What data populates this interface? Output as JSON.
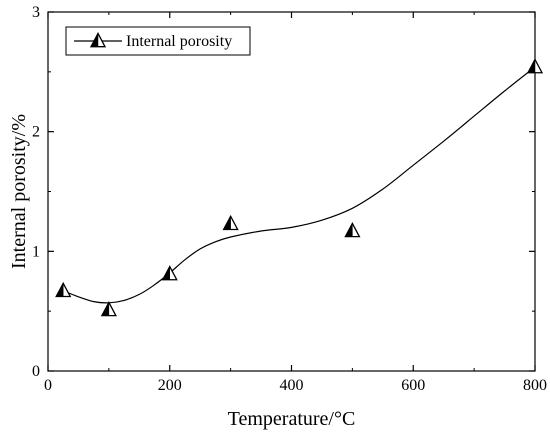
{
  "chart_data": {
    "type": "scatter",
    "xlabel": "Temperature/°C",
    "ylabel": "Internal porosity/%",
    "xlim": [
      0,
      800
    ],
    "ylim": [
      0,
      3
    ],
    "x_ticks": [
      0,
      200,
      400,
      600,
      800
    ],
    "y_ticks": [
      0,
      1,
      2,
      3
    ],
    "x_tick_labels": [
      "0",
      "200",
      "400",
      "600",
      "800"
    ],
    "y_tick_labels": [
      "0",
      "1",
      "2",
      "3"
    ],
    "grid": false,
    "legend_position": "top-left",
    "series": [
      {
        "name": "Internal porosity",
        "marker": "half-filled-triangle",
        "color": "#000000",
        "x": [
          25,
          100,
          200,
          300,
          500,
          800
        ],
        "y": [
          0.67,
          0.51,
          0.81,
          1.23,
          1.17,
          2.54
        ]
      }
    ],
    "fit_curve": {
      "x": [
        25,
        50,
        75,
        100,
        125,
        150,
        175,
        200,
        225,
        250,
        275,
        300,
        350,
        400,
        450,
        500,
        550,
        600,
        650,
        700,
        750,
        800
      ],
      "y": [
        0.67,
        0.62,
        0.58,
        0.57,
        0.59,
        0.64,
        0.72,
        0.82,
        0.93,
        1.02,
        1.08,
        1.12,
        1.17,
        1.2,
        1.26,
        1.36,
        1.52,
        1.72,
        1.92,
        2.13,
        2.34,
        2.54
      ]
    }
  }
}
